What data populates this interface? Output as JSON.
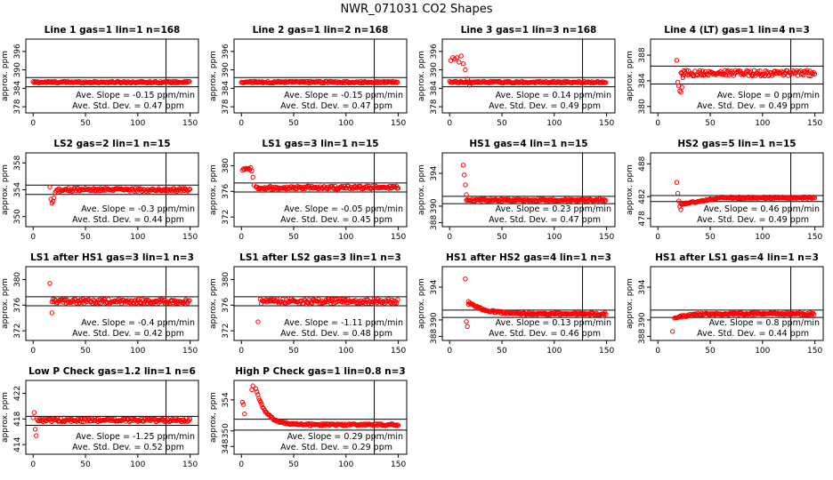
{
  "title": "NWR_071031  CO2 Shapes",
  "colors": {
    "points": "#ff0000",
    "axes": "#000000"
  },
  "chart_data": [
    {
      "type": "scatter",
      "title": "Line 1 gas=1 lin=1 n=168",
      "ylabel": "approx. ppm",
      "ylim": [
        376,
        400
      ],
      "yticks": [
        378,
        384,
        390,
        396
      ],
      "ytick_labels": [
        "378",
        "384",
        "390",
        "396"
      ],
      "xlim": [
        -7,
        158
      ],
      "xticks": [
        0,
        50,
        100,
        150
      ],
      "hlines": [
        387.5,
        384.5
      ],
      "vline": 127,
      "shape": {
        "kind": "flat",
        "start": 0,
        "end": 150,
        "level": 386,
        "noise": 0.3
      },
      "slope_text": "Ave. Slope =  -0.15  ppm/min",
      "std_text": "Ave. Std. Dev. =  0.47  ppm"
    },
    {
      "type": "scatter",
      "title": "Line 2 gas=1 lin=2 n=168",
      "ylabel": "approx. ppm",
      "ylim": [
        376,
        400
      ],
      "yticks": [
        378,
        384,
        390,
        396
      ],
      "ytick_labels": [
        "378",
        "384",
        "390",
        "396"
      ],
      "xlim": [
        -7,
        158
      ],
      "xticks": [
        0,
        50,
        100,
        150
      ],
      "hlines": [
        387.5,
        384.5
      ],
      "vline": 127,
      "shape": {
        "kind": "flat",
        "start": 0,
        "end": 150,
        "level": 386,
        "noise": 0.3
      },
      "slope_text": "Ave. Slope =  -0.15  ppm/min",
      "std_text": "Ave. Std. Dev. =  0.47  ppm"
    },
    {
      "type": "scatter",
      "title": "Line 3 gas=1 lin=3 n=168",
      "ylabel": "approx. ppm",
      "ylim": [
        376,
        400
      ],
      "yticks": [
        378,
        384,
        390,
        396
      ],
      "ytick_labels": [
        "378",
        "384",
        "390",
        "396"
      ],
      "xlim": [
        -7,
        158
      ],
      "xticks": [
        0,
        50,
        100,
        150
      ],
      "hlines": [
        387.5,
        384.5
      ],
      "vline": 127,
      "shape": {
        "kind": "highstart",
        "start": 0,
        "end": 150,
        "level": 386,
        "noise": 0.3,
        "early": [
          [
            1,
            393
          ],
          [
            3,
            394
          ],
          [
            5,
            393.5
          ],
          [
            7,
            394
          ],
          [
            9,
            392.5
          ],
          [
            11,
            394.5
          ],
          [
            13,
            392
          ],
          [
            15,
            390
          ],
          [
            17,
            387
          ],
          [
            19,
            385
          ]
        ]
      },
      "slope_text": "Ave. Slope =  0.14  ppm/min",
      "std_text": "Ave. Std. Dev. =  0.49  ppm"
    },
    {
      "type": "scatter",
      "title": "Line 4 (LT) gas=1 lin=4 n=3",
      "ylabel": "approx. ppm",
      "ylim": [
        379,
        390.5
      ],
      "yticks": [
        380,
        384,
        388
      ],
      "ytick_labels": [
        "380",
        "384",
        "388"
      ],
      "xlim": [
        -7,
        158
      ],
      "xticks": [
        0,
        50,
        100,
        150
      ],
      "hlines": [
        386.3,
        383.5
      ],
      "vline": 127,
      "shape": {
        "kind": "dips",
        "start": 22,
        "end": 150,
        "level": 385.2,
        "noise": 0.45,
        "early": [
          [
            18,
            387.2
          ],
          [
            19,
            383.8
          ],
          [
            20,
            383.2
          ],
          [
            21,
            382.4
          ],
          [
            22,
            382.2
          ],
          [
            23,
            383.0
          ],
          [
            24,
            384.5
          ]
        ]
      },
      "slope_text": "Ave. Slope =  0  ppm/min",
      "std_text": "Ave. Std. Dev. =  0.49  ppm"
    },
    {
      "type": "scatter",
      "title": "LS2 gas=2 lin=1 n=15",
      "ylabel": "approx. ppm",
      "ylim": [
        348.5,
        359.5
      ],
      "yticks": [
        350,
        354,
        358
      ],
      "ytick_labels": [
        "350",
        "354",
        "358"
      ],
      "xlim": [
        -7,
        158
      ],
      "xticks": [
        0,
        50,
        100,
        150
      ],
      "hlines": [
        354.7,
        353.3
      ],
      "vline": 127,
      "shape": {
        "kind": "dips",
        "start": 22,
        "end": 150,
        "level": 354.0,
        "noise": 0.25,
        "early": [
          [
            16,
            354.4
          ],
          [
            17,
            352.6
          ],
          [
            18,
            352.0
          ],
          [
            19,
            352.3
          ],
          [
            20,
            352.8
          ],
          [
            21,
            353.6
          ]
        ]
      },
      "slope_text": "Ave. Slope =  -0.3  ppm/min",
      "std_text": "Ave. Std. Dev. =  0.44  ppm"
    },
    {
      "type": "scatter",
      "title": "LS1 gas=3 lin=1 n=15",
      "ylabel": "approx. ppm",
      "ylim": [
        370.5,
        382
      ],
      "yticks": [
        372,
        376,
        380
      ],
      "ytick_labels": [
        "372",
        "376",
        "380"
      ],
      "xlim": [
        -7,
        158
      ],
      "xticks": [
        0,
        50,
        100,
        150
      ],
      "hlines": [
        377.3,
        375.9
      ],
      "vline": 127,
      "shape": {
        "kind": "highstart",
        "start": 14,
        "end": 150,
        "level": 376.6,
        "noise": 0.25,
        "early": [
          [
            1,
            379.3
          ],
          [
            2,
            379.5
          ],
          [
            3,
            379.4
          ],
          [
            4,
            379.6
          ],
          [
            5,
            379.5
          ],
          [
            6,
            379.5
          ],
          [
            7,
            379.6
          ],
          [
            8,
            379.4
          ],
          [
            9,
            379.7
          ],
          [
            10,
            379.2
          ],
          [
            11,
            378.2
          ],
          [
            12,
            377.0
          ]
        ]
      },
      "slope_text": "Ave. Slope =  -0.05  ppm/min",
      "std_text": "Ave. Std. Dev. =  0.45  ppm"
    },
    {
      "type": "scatter",
      "title": "HS1 gas=4 lin=1 n=15",
      "ylabel": "approx. ppm",
      "ylim": [
        387.5,
        396.5
      ],
      "yticks": [
        388,
        390,
        394
      ],
      "ytick_labels": [
        "388",
        "390",
        "394"
      ],
      "xlim": [
        -7,
        158
      ],
      "xticks": [
        0,
        50,
        100,
        150
      ],
      "hlines": [
        391.2,
        390.3
      ],
      "vline": 127,
      "shape": {
        "kind": "highstart",
        "start": 16,
        "end": 150,
        "level": 390.75,
        "noise": 0.12,
        "early": [
          [
            13,
            395.0
          ],
          [
            14,
            393.8
          ],
          [
            15,
            392.6
          ],
          [
            16,
            391.4
          ]
        ]
      },
      "slope_text": "Ave. Slope =  0.23  ppm/min",
      "std_text": "Ave. Std. Dev. =  0.47  ppm"
    },
    {
      "type": "scatter",
      "title": "HS2 gas=5 lin=1 n=15",
      "ylabel": "approx. ppm",
      "ylim": [
        476.5,
        490
      ],
      "yticks": [
        478,
        482,
        488
      ],
      "ytick_labels": [
        "478",
        "482",
        "488"
      ],
      "xlim": [
        -7,
        158
      ],
      "xticks": [
        0,
        50,
        100,
        150
      ],
      "hlines": [
        482.2,
        481.1
      ],
      "vline": 127,
      "shape": {
        "kind": "dips",
        "start": 22,
        "end": 150,
        "level": 481.8,
        "noise": 0.15,
        "rise": [
          22,
          60,
          480.6
        ],
        "early": [
          [
            18,
            484.6
          ],
          [
            19,
            482.6
          ],
          [
            20,
            481.2
          ],
          [
            21,
            480.2
          ],
          [
            22,
            479.6
          ]
        ]
      },
      "slope_text": "Ave. Slope =  0.46  ppm/min",
      "std_text": "Ave. Std. Dev. =  0.49  ppm"
    },
    {
      "type": "scatter",
      "title": "LS1 after HS1 gas=3 lin=1 n=3",
      "ylabel": "approx. ppm",
      "ylim": [
        370.5,
        382
      ],
      "yticks": [
        372,
        376,
        380
      ],
      "ytick_labels": [
        "372",
        "376",
        "380"
      ],
      "xlim": [
        -7,
        158
      ],
      "xticks": [
        0,
        50,
        100,
        150
      ],
      "hlines": [
        377.3,
        375.9
      ],
      "vline": 127,
      "shape": {
        "kind": "dips",
        "start": 18,
        "end": 150,
        "level": 376.6,
        "noise": 0.35,
        "early": [
          [
            16,
            379.4
          ],
          [
            18,
            374.8
          ]
        ]
      },
      "slope_text": "Ave. Slope =  -0.4  ppm/min",
      "std_text": "Ave. Std. Dev. =  0.42  ppm"
    },
    {
      "type": "scatter",
      "title": "LS1 after LS2 gas=3 lin=1 n=3",
      "ylabel": "approx. ppm",
      "ylim": [
        370.5,
        382
      ],
      "yticks": [
        372,
        376,
        380
      ],
      "ytick_labels": [
        "372",
        "376",
        "380"
      ],
      "xlim": [
        -7,
        158
      ],
      "xticks": [
        0,
        50,
        100,
        150
      ],
      "hlines": [
        377.3,
        375.9
      ],
      "vline": 127,
      "shape": {
        "kind": "dips",
        "start": 18,
        "end": 150,
        "level": 376.6,
        "noise": 0.35,
        "early": [
          [
            16,
            373.4
          ]
        ]
      },
      "slope_text": "Ave. Slope =  -1.11  ppm/min",
      "std_text": "Ave. Std. Dev. =  0.48  ppm"
    },
    {
      "type": "scatter",
      "title": "HS1 after HS2 gas=4 lin=1 n=3",
      "ylabel": "approx. ppm",
      "ylim": [
        387.5,
        396.5
      ],
      "yticks": [
        388,
        390,
        394
      ],
      "ytick_labels": [
        "388",
        "390",
        "394"
      ],
      "xlim": [
        -7,
        158
      ],
      "xticks": [
        0,
        50,
        100,
        150
      ],
      "hlines": [
        391.2,
        390.3
      ],
      "vline": 127,
      "shape": {
        "kind": "decay",
        "start": 18,
        "end": 150,
        "level": 390.75,
        "noise": 0.12,
        "decay": [
          1.5,
          14
        ],
        "early": [
          [
            15,
            395.0
          ],
          [
            16,
            389.8
          ],
          [
            17,
            389.2
          ],
          [
            18,
            391.9
          ]
        ]
      },
      "slope_text": "Ave. Slope =  0.13  ppm/min",
      "std_text": "Ave. Std. Dev. =  0.46  ppm"
    },
    {
      "type": "scatter",
      "title": "HS1 after LS1 gas=4 lin=1 n=3",
      "ylabel": "approx. ppm",
      "ylim": [
        387.5,
        396.5
      ],
      "yticks": [
        388,
        390,
        394
      ],
      "ytick_labels": [
        "388",
        "390",
        "394"
      ],
      "xlim": [
        -7,
        158
      ],
      "xticks": [
        0,
        50,
        100,
        150
      ],
      "hlines": [
        391.2,
        390.3
      ],
      "vline": 127,
      "shape": {
        "kind": "dips",
        "start": 16,
        "end": 150,
        "level": 390.75,
        "noise": 0.12,
        "rise": [
          16,
          40,
          390.3
        ],
        "early": [
          [
            14,
            388.6
          ]
        ]
      },
      "slope_text": "Ave. Slope =  0.8  ppm/min",
      "std_text": "Ave. Std. Dev. =  0.44  ppm"
    },
    {
      "type": "scatter",
      "title": "Low P Check gas=1.2 lin=1 n=6",
      "ylabel": "approx. ppm",
      "ylim": [
        412.5,
        424
      ],
      "yticks": [
        414,
        418,
        422
      ],
      "ytick_labels": [
        "414",
        "418",
        "422"
      ],
      "xlim": [
        -7,
        158
      ],
      "xticks": [
        0,
        50,
        100,
        150
      ],
      "hlines": [
        418.4,
        417.0
      ],
      "vline": 127,
      "shape": {
        "kind": "dips",
        "start": 4,
        "end": 150,
        "level": 417.8,
        "noise": 0.25,
        "early": [
          [
            0,
            418.2
          ],
          [
            1,
            419.0
          ],
          [
            2,
            416.4
          ],
          [
            3,
            415.4
          ]
        ]
      },
      "slope_text": "Ave. Slope =  -1.25  ppm/min",
      "std_text": "Ave. Std. Dev. =  0.52  ppm"
    },
    {
      "type": "scatter",
      "title": "High P Check gas=1 lin=0.8 n=3",
      "ylabel": "approx. ppm",
      "ylim": [
        347,
        356.5
      ],
      "yticks": [
        348,
        350,
        354
      ],
      "ytick_labels": [
        "348",
        "350",
        "354"
      ],
      "xlim": [
        -7,
        158
      ],
      "xticks": [
        0,
        50,
        100,
        150
      ],
      "hlines": [
        351.5,
        350.1
      ],
      "vline": 127,
      "shape": {
        "kind": "decay",
        "start": 14,
        "end": 150,
        "level": 350.8,
        "noise": 0.12,
        "decay": [
          4.7,
          9
        ],
        "early": [
          [
            1,
            353.7
          ],
          [
            2,
            353.4
          ],
          [
            3,
            352.2
          ],
          [
            10,
            355.3
          ],
          [
            11,
            355.8
          ]
        ]
      },
      "slope_text": "Ave. Slope =  0.29  ppm/min",
      "std_text": "Ave. Std. Dev. =  0.29  ppm"
    }
  ]
}
